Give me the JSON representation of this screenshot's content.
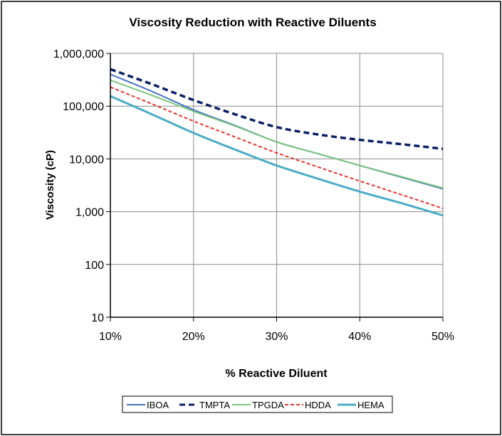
{
  "chart_data": {
    "type": "line",
    "title": "Viscosity Reduction with Reactive Diluents",
    "xlabel": "% Reactive Diluent",
    "ylabel": "Viscosity  (cP)",
    "x": [
      10,
      15,
      20,
      25,
      30,
      35,
      40,
      45,
      50
    ],
    "x_tick_values": [
      10,
      20,
      30,
      40,
      50
    ],
    "x_tick_labels": [
      "10%",
      "20%",
      "30%",
      "40%",
      "50%"
    ],
    "xlim": [
      10,
      50
    ],
    "y_scale": "log",
    "ylim": [
      10,
      1000000
    ],
    "y_tick_values": [
      10,
      100,
      1000,
      10000,
      100000,
      1000000
    ],
    "y_tick_labels": [
      "10",
      "100",
      "1,000",
      "10,000",
      "100,000",
      "1,000,000"
    ],
    "grid": true,
    "legend_position": "bottom",
    "series": [
      {
        "name": "IBOA",
        "color": "#4472C4",
        "dash": "solid",
        "width": 2,
        "values": [
          400000,
          190000,
          85000,
          43000,
          21000,
          12500,
          7500,
          4500,
          2700
        ]
      },
      {
        "name": "TMPTA",
        "color": "#0B1F66",
        "dash": "dashed",
        "width": 3.5,
        "values": [
          500000,
          260000,
          130000,
          70000,
          40000,
          29000,
          23000,
          19000,
          15500
        ]
      },
      {
        "name": "TPGDA",
        "color": "#7DC47D",
        "dash": "solid",
        "width": 2,
        "values": [
          310000,
          160000,
          80000,
          42000,
          21000,
          12500,
          7500,
          4600,
          2800
        ]
      },
      {
        "name": "HDDA",
        "color": "#E8352E",
        "dash": "dashed",
        "width": 2,
        "values": [
          230000,
          110000,
          52000,
          26000,
          13000,
          7000,
          3800,
          2100,
          1150
        ]
      },
      {
        "name": "HEMA",
        "color": "#4BACC6",
        "dash": "solid",
        "width": 3,
        "values": [
          155000,
          70000,
          31000,
          15000,
          7500,
          4200,
          2400,
          1450,
          850
        ]
      }
    ]
  }
}
